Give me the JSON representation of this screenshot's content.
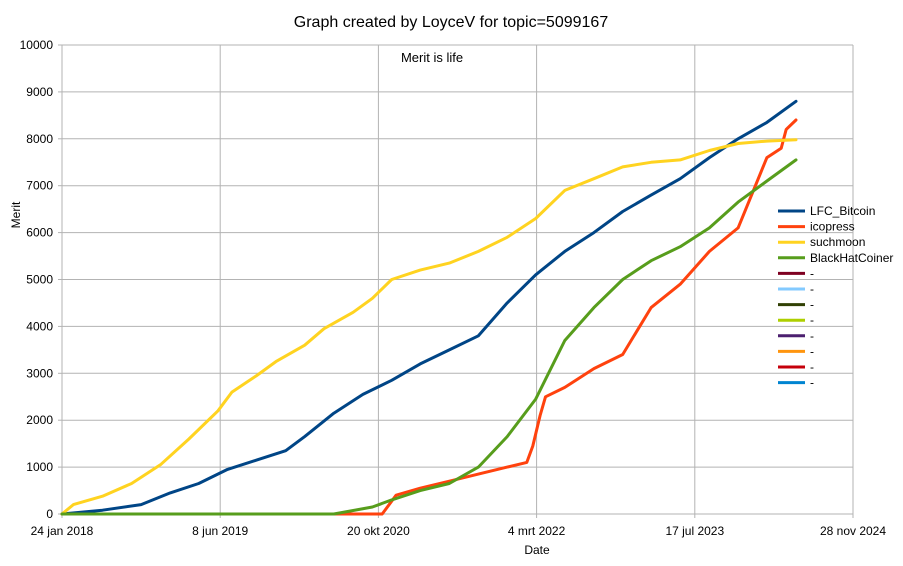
{
  "chart_data": {
    "type": "line",
    "title": "Graph created by LoyceV for topic=5099167",
    "subtitle": "Merit is life",
    "xlabel": "Date",
    "ylabel": "Merit",
    "x_ticks": [
      "24 jan 2018",
      "8 jun 2019",
      "20 okt 2020",
      "4 mrt 2022",
      "17 jul 2023",
      "28 nov 2024"
    ],
    "xlim": [
      "2018-01-24",
      "2024-11-28"
    ],
    "ylim": [
      0,
      10000
    ],
    "y_ticks": [
      0,
      1000,
      2000,
      3000,
      4000,
      5000,
      6000,
      7000,
      8000,
      9000,
      10000
    ],
    "grid": true,
    "legend_position": "right",
    "series": [
      {
        "name": "LFC_Bitcoin",
        "color": "#004586",
        "points": [
          [
            "2018-01-24",
            0
          ],
          [
            "2018-06-01",
            80
          ],
          [
            "2018-10-01",
            200
          ],
          [
            "2019-01-01",
            450
          ],
          [
            "2019-04-01",
            650
          ],
          [
            "2019-07-01",
            950
          ],
          [
            "2019-10-01",
            1150
          ],
          [
            "2020-01-01",
            1350
          ],
          [
            "2020-03-01",
            1650
          ],
          [
            "2020-06-01",
            2150
          ],
          [
            "2020-09-01",
            2550
          ],
          [
            "2020-12-01",
            2850
          ],
          [
            "2021-03-01",
            3200
          ],
          [
            "2021-06-01",
            3500
          ],
          [
            "2021-09-01",
            3800
          ],
          [
            "2021-12-01",
            4500
          ],
          [
            "2022-03-01",
            5100
          ],
          [
            "2022-06-01",
            5600
          ],
          [
            "2022-09-01",
            6000
          ],
          [
            "2022-12-01",
            6450
          ],
          [
            "2023-03-01",
            6800
          ],
          [
            "2023-06-01",
            7150
          ],
          [
            "2023-09-01",
            7600
          ],
          [
            "2023-12-01",
            8000
          ],
          [
            "2024-03-01",
            8350
          ],
          [
            "2024-06-01",
            8800
          ]
        ]
      },
      {
        "name": "icopress",
        "color": "#ff420e",
        "points": [
          [
            "2018-01-24",
            0
          ],
          [
            "2020-11-01",
            0
          ],
          [
            "2020-12-15",
            400
          ],
          [
            "2021-03-01",
            550
          ],
          [
            "2021-06-01",
            700
          ],
          [
            "2021-09-01",
            850
          ],
          [
            "2021-12-01",
            1000
          ],
          [
            "2022-02-01",
            1100
          ],
          [
            "2022-02-20",
            1450
          ],
          [
            "2022-03-15",
            2100
          ],
          [
            "2022-04-01",
            2500
          ],
          [
            "2022-06-01",
            2700
          ],
          [
            "2022-09-01",
            3100
          ],
          [
            "2022-12-01",
            3400
          ],
          [
            "2023-03-01",
            4400
          ],
          [
            "2023-06-01",
            4900
          ],
          [
            "2023-09-01",
            5600
          ],
          [
            "2023-12-01",
            6100
          ],
          [
            "2024-03-01",
            7600
          ],
          [
            "2024-04-15",
            7800
          ],
          [
            "2024-05-01",
            8200
          ],
          [
            "2024-06-01",
            8400
          ]
        ]
      },
      {
        "name": "suchmoon",
        "color": "#ffd320",
        "points": [
          [
            "2018-01-24",
            0
          ],
          [
            "2018-03-01",
            200
          ],
          [
            "2018-06-01",
            380
          ],
          [
            "2018-09-01",
            650
          ],
          [
            "2018-12-01",
            1050
          ],
          [
            "2019-03-01",
            1600
          ],
          [
            "2019-06-01",
            2200
          ],
          [
            "2019-07-15",
            2600
          ],
          [
            "2019-10-01",
            2950
          ],
          [
            "2019-12-01",
            3250
          ],
          [
            "2020-03-01",
            3600
          ],
          [
            "2020-05-01",
            3950
          ],
          [
            "2020-08-01",
            4300
          ],
          [
            "2020-10-01",
            4600
          ],
          [
            "2020-12-01",
            5000
          ],
          [
            "2021-03-01",
            5200
          ],
          [
            "2021-06-01",
            5350
          ],
          [
            "2021-09-01",
            5600
          ],
          [
            "2021-12-01",
            5900
          ],
          [
            "2022-03-01",
            6300
          ],
          [
            "2022-06-01",
            6900
          ],
          [
            "2022-09-01",
            7150
          ],
          [
            "2022-12-01",
            7400
          ],
          [
            "2023-03-01",
            7500
          ],
          [
            "2023-06-01",
            7550
          ],
          [
            "2023-09-01",
            7750
          ],
          [
            "2023-12-01",
            7900
          ],
          [
            "2024-03-01",
            7950
          ],
          [
            "2024-06-01",
            7980
          ]
        ]
      },
      {
        "name": "BlackHatCoiner",
        "color": "#579d1c",
        "points": [
          [
            "2018-01-24",
            0
          ],
          [
            "2020-06-01",
            0
          ],
          [
            "2020-10-01",
            150
          ],
          [
            "2020-12-01",
            300
          ],
          [
            "2021-03-01",
            500
          ],
          [
            "2021-06-01",
            650
          ],
          [
            "2021-09-01",
            1000
          ],
          [
            "2021-12-01",
            1650
          ],
          [
            "2022-03-01",
            2450
          ],
          [
            "2022-06-01",
            3700
          ],
          [
            "2022-09-01",
            4400
          ],
          [
            "2022-12-01",
            5000
          ],
          [
            "2023-03-01",
            5400
          ],
          [
            "2023-06-01",
            5700
          ],
          [
            "2023-09-01",
            6100
          ],
          [
            "2023-12-01",
            6650
          ],
          [
            "2024-03-01",
            7100
          ],
          [
            "2024-06-01",
            7550
          ]
        ]
      },
      {
        "name": "-",
        "color": "#7e0021",
        "points": []
      },
      {
        "name": "-",
        "color": "#83caff",
        "points": []
      },
      {
        "name": "-",
        "color": "#314004",
        "points": []
      },
      {
        "name": "-",
        "color": "#aecf00",
        "points": []
      },
      {
        "name": "-",
        "color": "#4b1f6f",
        "points": []
      },
      {
        "name": "-",
        "color": "#ff950e",
        "points": []
      },
      {
        "name": "-",
        "color": "#c5000b",
        "points": []
      },
      {
        "name": "-",
        "color": "#0084d1",
        "points": []
      }
    ]
  }
}
